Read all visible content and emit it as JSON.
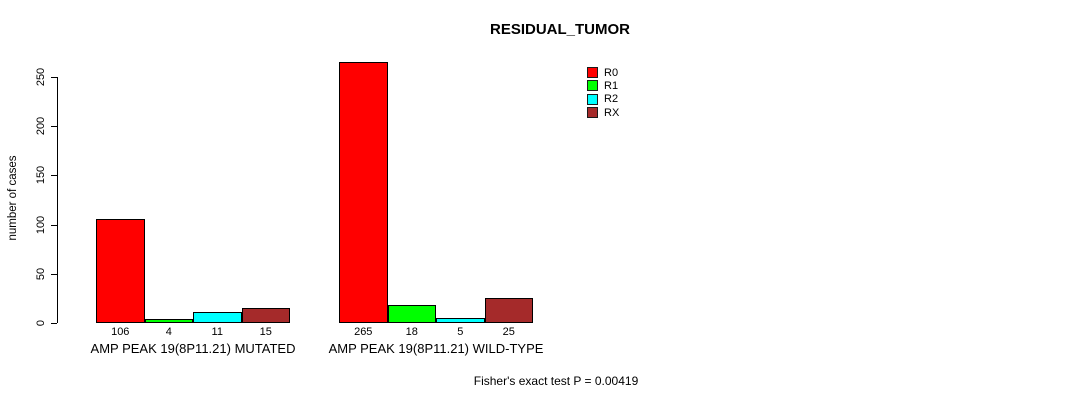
{
  "chart_data": {
    "type": "bar",
    "title": "RESIDUAL_TUMOR",
    "ylabel": "number of cases",
    "ylim": [
      0,
      250
    ],
    "yticks": [
      0,
      50,
      100,
      150,
      200,
      250
    ],
    "categories": [
      "AMP PEAK 19(8P11.21) MUTATED",
      "AMP PEAK 19(8P11.21) WILD-TYPE"
    ],
    "series": [
      {
        "name": "R0",
        "color": "#ff0000",
        "values": [
          106,
          265
        ]
      },
      {
        "name": "R1",
        "color": "#00ff00",
        "values": [
          4,
          18
        ]
      },
      {
        "name": "R2",
        "color": "#00ffff",
        "values": [
          11,
          5
        ]
      },
      {
        "name": "RX",
        "color": "#a52a2a",
        "values": [
          15,
          25
        ]
      }
    ],
    "bar_value_labels": {
      "AMP PEAK 19(8P11.21) MUTATED": [
        106,
        4,
        11,
        15
      ],
      "AMP PEAK 19(8P11.21) WILD-TYPE": [
        265,
        18,
        5,
        25
      ]
    },
    "legend_position": "top-right",
    "grid": false,
    "annotation": "Fisher's exact test P = 0.00419"
  },
  "legend": {
    "items": [
      {
        "label": "R0",
        "color": "#ff0000"
      },
      {
        "label": "R1",
        "color": "#00ff00"
      },
      {
        "label": "R2",
        "color": "#00ffff"
      },
      {
        "label": "RX",
        "color": "#a52a2a"
      }
    ]
  },
  "footer": {
    "stat_text": "Fisher's exact test P = 0.00419"
  }
}
